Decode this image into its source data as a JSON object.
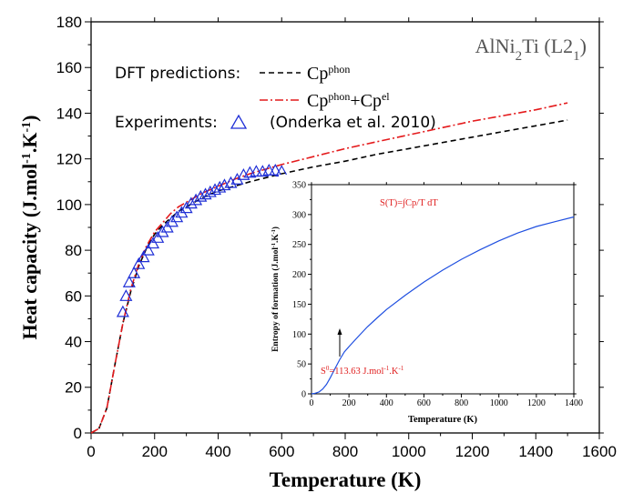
{
  "chart_data": [
    {
      "type": "line",
      "title": "AlNi2Ti (L21)",
      "title_parts": {
        "a": "AlNi",
        "b": "2",
        "c": "Ti (L2",
        "d": "1",
        "e": ")"
      },
      "xlabel": "Temperature (K)",
      "ylabel": {
        "a": "Heat capacity (J.mol",
        "b": "-1",
        "c": ".K",
        "d": "-1",
        "e": ")"
      },
      "xlim": [
        0,
        1600
      ],
      "ylim": [
        0,
        180
      ],
      "xticks": [
        "0",
        "200",
        "400",
        "600",
        "800",
        "1000",
        "1200",
        "1400",
        "1600"
      ],
      "yticks": [
        "0",
        "20",
        "40",
        "60",
        "80",
        "100",
        "120",
        "140",
        "160",
        "180"
      ],
      "legend": {
        "placement": "top-left",
        "dft_label": "DFT predictions:",
        "exp_label": "Experiments:",
        "entries": [
          {
            "base": "Cp",
            "sup": "phon",
            "plus": "",
            "base2": "",
            "sup2": ""
          },
          {
            "base": "Cp",
            "sup": "phon",
            "plus": "+",
            "base2": "Cp",
            "sup2": "el"
          },
          {
            "text": "(Onderka et al. 2010)"
          }
        ]
      },
      "series": [
        {
          "name": "Cp^phon",
          "style": "dashed",
          "color": "#000000",
          "x": [
            0,
            25,
            50,
            75,
            100,
            125,
            150,
            175,
            200,
            225,
            250,
            275,
            300,
            350,
            400,
            450,
            500,
            600,
            700,
            800,
            900,
            1000,
            1100,
            1200,
            1300,
            1400,
            1500
          ],
          "y": [
            0,
            2,
            11,
            30,
            48,
            62,
            73,
            81,
            87,
            91,
            94,
            97,
            99,
            103,
            106,
            108,
            110,
            113.5,
            116.5,
            119,
            122,
            124.5,
            127,
            129.5,
            132,
            134.5,
            137
          ]
        },
        {
          "name": "Cp^phon+Cp^el",
          "style": "dash-dot",
          "color": "#e41a1c",
          "x": [
            0,
            25,
            50,
            75,
            100,
            125,
            150,
            175,
            200,
            225,
            250,
            275,
            300,
            350,
            400,
            450,
            500,
            600,
            700,
            800,
            900,
            1000,
            1100,
            1200,
            1300,
            1400,
            1500
          ],
          "y": [
            0,
            2,
            11,
            30,
            48,
            63,
            74,
            82,
            88,
            92,
            96,
            99,
            101,
            105,
            108,
            111,
            113.5,
            117.5,
            121,
            124.5,
            127.5,
            130.5,
            133.5,
            136.5,
            139,
            141.5,
            144.5
          ]
        },
        {
          "name": "(Onderka et al. 2010)",
          "style": "marker-triangle",
          "color": "#1f2fd6",
          "x": [
            100,
            110,
            120,
            135,
            150,
            165,
            180,
            195,
            210,
            225,
            240,
            255,
            270,
            285,
            300,
            315,
            330,
            345,
            360,
            375,
            390,
            405,
            420,
            440,
            460,
            480,
            500,
            520,
            540,
            560,
            580,
            600
          ],
          "y": [
            53,
            60,
            66,
            70,
            74,
            77,
            80,
            83,
            85.5,
            88,
            90,
            92.5,
            94.5,
            96.5,
            98.5,
            100.5,
            102,
            103.5,
            104.5,
            105.5,
            106.5,
            107.5,
            108.5,
            109.5,
            111,
            113,
            114,
            114.5,
            114.5,
            115,
            115,
            114.5
          ]
        }
      ]
    },
    {
      "type": "line",
      "title": "S(T)=∫Cp/T dT",
      "xlabel": "Temperature (K)",
      "ylabel": {
        "a": "Entropy of formation (J.mol",
        "b": "-1",
        "c": ".K",
        "d": "-1",
        "e": ")"
      },
      "xlim": [
        0,
        1400
      ],
      "ylim": [
        0,
        350
      ],
      "xticks": [
        "0",
        "200",
        "400",
        "600",
        "800",
        "1000",
        "1200",
        "1400"
      ],
      "yticks": [
        "0",
        "50",
        "100",
        "150",
        "200",
        "250",
        "300",
        "350"
      ],
      "annotation": {
        "a": "S",
        "b": "0",
        "c": "=113.63 J.mol",
        "d": "-1",
        "e": ".K",
        "f": "-1",
        "x": 298,
        "y": 113.63
      },
      "series": [
        {
          "style": "solid",
          "color": "#1f4fe0",
          "x": [
            0,
            20,
            40,
            60,
            80,
            100,
            125,
            150,
            175,
            200,
            250,
            298,
            350,
            400,
            500,
            600,
            700,
            800,
            900,
            1000,
            1100,
            1200,
            1300,
            1400
          ],
          "y": [
            0,
            1,
            3,
            8,
            16,
            27,
            42,
            57,
            70,
            79,
            96,
            112,
            127,
            141,
            165,
            187,
            207,
            225,
            241,
            256,
            269,
            280,
            288,
            296
          ]
        }
      ]
    }
  ]
}
